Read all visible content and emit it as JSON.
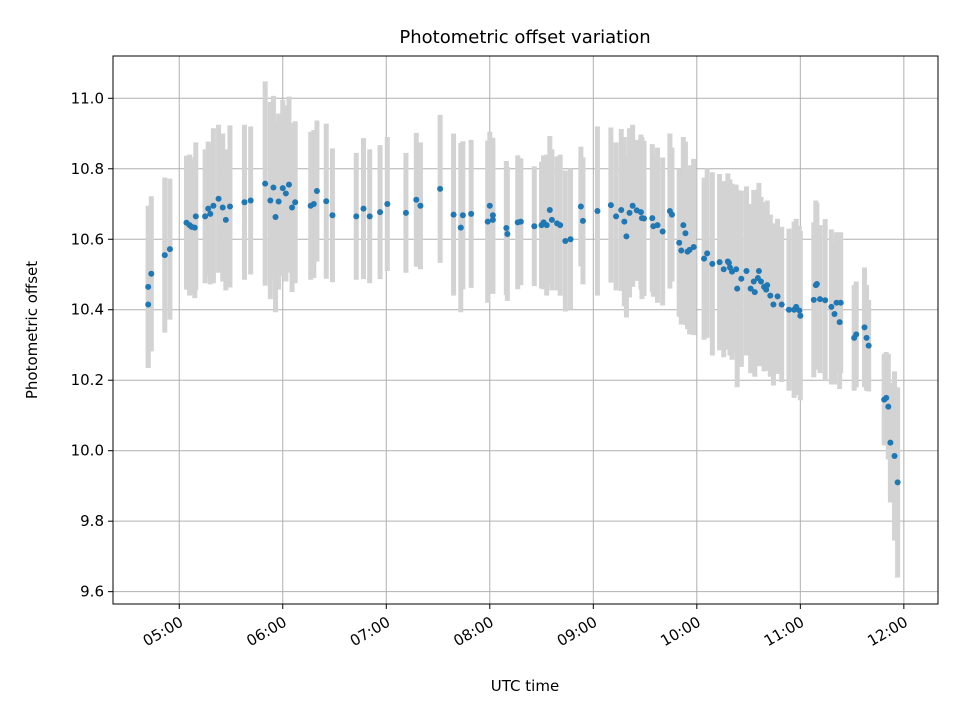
{
  "chart_data": {
    "type": "scatter",
    "title": "Photometric offset variation",
    "xlabel": "UTC time",
    "ylabel": "Photometric offset",
    "x_unit": "UTC hours",
    "xlim": [
      4.36,
      12.33
    ],
    "ylim": [
      9.565,
      11.12
    ],
    "grid": true,
    "x_tick_values": [
      5,
      6,
      7,
      8,
      9,
      10,
      11,
      12
    ],
    "x_tick_labels": [
      "05:00",
      "06:00",
      "07:00",
      "08:00",
      "09:00",
      "10:00",
      "11:00",
      "12:00"
    ],
    "y_tick_values": [
      9.6,
      9.8,
      10.0,
      10.2,
      10.4,
      10.6,
      10.8,
      11.0
    ],
    "y_tick_labels": [
      "9.6",
      "9.8",
      "10.0",
      "10.2",
      "10.4",
      "10.6",
      "10.8",
      "11.0"
    ],
    "colors": {
      "points": "#1f77b4",
      "errorbars": "#d3d3d3",
      "grid": "#b0b0b0"
    },
    "series": [
      {
        "x": [
          4.7,
          4.7,
          4.73,
          4.86,
          4.91,
          5.07,
          5.1,
          5.12,
          5.15,
          5.16,
          5.25,
          5.28,
          5.3,
          5.33,
          5.38,
          5.42,
          5.45,
          5.49,
          5.63,
          5.69,
          5.83,
          5.88,
          5.91,
          5.93,
          5.96,
          6.0,
          6.03,
          6.06,
          6.09,
          6.12,
          6.27,
          6.3,
          6.33,
          6.42,
          6.48,
          6.71,
          6.78,
          6.84,
          6.94,
          7.01,
          7.19,
          7.29,
          7.33,
          7.52,
          7.65,
          7.72,
          7.74,
          7.82,
          7.98,
          8.0,
          8.03,
          8.03,
          8.16,
          8.17,
          8.27,
          8.3,
          8.43,
          8.5,
          8.52,
          8.55,
          8.58,
          8.6,
          8.65,
          8.68,
          8.73,
          8.78,
          8.88,
          8.9,
          9.04,
          9.17,
          9.22,
          9.27,
          9.3,
          9.32,
          9.35,
          9.38,
          9.42,
          9.46,
          9.47,
          9.49,
          9.57,
          9.58,
          9.62,
          9.67,
          9.74,
          9.76,
          9.83,
          9.85,
          9.87,
          9.89,
          9.91,
          9.93,
          9.97,
          10.07,
          10.1,
          10.15,
          10.22,
          10.26,
          10.3,
          10.31,
          10.32,
          10.34,
          10.38,
          10.39,
          10.43,
          10.48,
          10.52,
          10.55,
          10.56,
          10.59,
          10.6,
          10.62,
          10.65,
          10.67,
          10.68,
          10.71,
          10.74,
          10.78,
          10.82,
          10.89,
          10.94,
          10.96,
          10.99,
          11.0,
          11.13,
          11.15,
          11.16,
          11.19,
          11.24,
          11.3,
          11.33,
          11.35,
          11.38,
          11.39,
          11.52,
          11.54,
          11.62,
          11.64,
          11.66,
          11.81,
          11.83,
          11.85,
          11.87,
          11.91,
          11.94
        ],
        "y": [
          10.465,
          10.415,
          10.502,
          10.555,
          10.572,
          10.647,
          10.64,
          10.635,
          10.633,
          10.665,
          10.665,
          10.687,
          10.672,
          10.695,
          10.715,
          10.69,
          10.655,
          10.693,
          10.705,
          10.71,
          10.758,
          10.71,
          10.747,
          10.663,
          10.707,
          10.745,
          10.73,
          10.755,
          10.69,
          10.705,
          10.695,
          10.7,
          10.737,
          10.708,
          10.668,
          10.665,
          10.687,
          10.665,
          10.677,
          10.7,
          10.675,
          10.712,
          10.695,
          10.743,
          10.67,
          10.633,
          10.668,
          10.672,
          10.65,
          10.695,
          10.668,
          10.655,
          10.632,
          10.615,
          10.648,
          10.65,
          10.637,
          10.64,
          10.648,
          10.64,
          10.683,
          10.655,
          10.645,
          10.64,
          10.595,
          10.6,
          10.693,
          10.652,
          10.68,
          10.697,
          10.665,
          10.683,
          10.65,
          10.608,
          10.675,
          10.695,
          10.682,
          10.677,
          10.66,
          10.659,
          10.66,
          10.637,
          10.64,
          10.622,
          10.68,
          10.67,
          10.59,
          10.568,
          10.64,
          10.617,
          10.565,
          10.57,
          10.578,
          10.545,
          10.56,
          10.53,
          10.535,
          10.515,
          10.537,
          10.533,
          10.52,
          10.508,
          10.515,
          10.46,
          10.488,
          10.51,
          10.46,
          10.48,
          10.45,
          10.49,
          10.51,
          10.48,
          10.465,
          10.457,
          10.47,
          10.44,
          10.415,
          10.438,
          10.415,
          10.4,
          10.4,
          10.408,
          10.398,
          10.383,
          10.428,
          10.47,
          10.473,
          10.43,
          10.427,
          10.408,
          10.388,
          10.42,
          10.365,
          10.42,
          10.32,
          10.33,
          10.35,
          10.32,
          10.298,
          10.145,
          10.15,
          10.125,
          10.023,
          9.985,
          9.91
        ],
        "err": [
          0.23,
          0.18,
          0.22,
          0.22,
          0.2,
          0.19,
          0.2,
          0.19,
          0.2,
          0.21,
          0.19,
          0.19,
          0.2,
          0.22,
          0.21,
          0.21,
          0.2,
          0.23,
          0.22,
          0.21,
          0.29,
          0.28,
          0.26,
          0.27,
          0.25,
          0.25,
          0.25,
          0.25,
          0.24,
          0.23,
          0.21,
          0.21,
          0.2,
          0.22,
          0.19,
          0.18,
          0.2,
          0.19,
          0.19,
          0.19,
          0.17,
          0.19,
          0.18,
          0.21,
          0.23,
          0.24,
          0.21,
          0.21,
          0.23,
          0.21,
          0.22,
          0.21,
          0.19,
          0.19,
          0.19,
          0.18,
          0.17,
          0.18,
          0.19,
          0.2,
          0.21,
          0.2,
          0.19,
          0.2,
          0.2,
          0.2,
          0.17,
          0.18,
          0.24,
          0.22,
          0.21,
          0.23,
          0.24,
          0.23,
          0.24,
          0.23,
          0.2,
          0.22,
          0.23,
          0.22,
          0.21,
          0.2,
          0.22,
          0.21,
          0.22,
          0.19,
          0.21,
          0.21,
          0.25,
          0.26,
          0.22,
          0.24,
          0.25,
          0.23,
          0.24,
          0.26,
          0.25,
          0.25,
          0.25,
          0.23,
          0.25,
          0.25,
          0.24,
          0.28,
          0.25,
          0.24,
          0.24,
          0.26,
          0.24,
          0.25,
          0.25,
          0.24,
          0.24,
          0.23,
          0.24,
          0.23,
          0.23,
          0.22,
          0.22,
          0.23,
          0.25,
          0.25,
          0.24,
          0.24,
          0.22,
          0.24,
          0.23,
          0.21,
          0.23,
          0.22,
          0.2,
          0.2,
          0.19,
          0.2,
          0.15,
          0.15,
          0.17,
          0.15,
          0.13,
          0.13,
          0.13,
          0.15,
          0.17,
          0.24,
          0.27
        ]
      }
    ]
  }
}
